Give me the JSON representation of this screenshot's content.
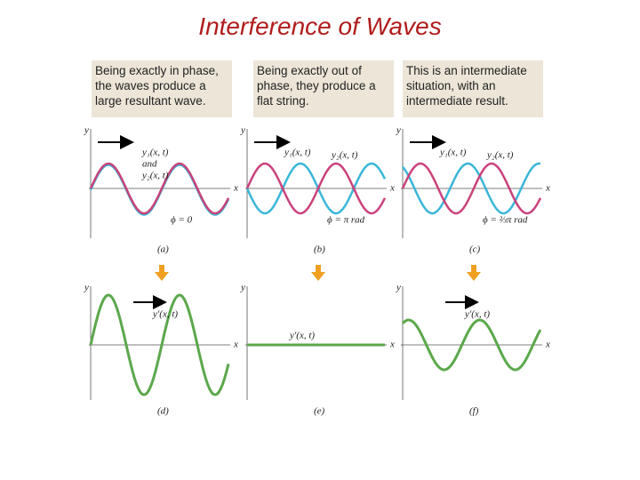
{
  "title": "Interference of Waves",
  "captions": [
    "Being exactly in phase, the waves produce a large resultant wave.",
    "Being exactly out of phase, they produce a flat string.",
    "This is an intermediate situation, with an intermediate result."
  ],
  "top_panels": [
    {
      "label": "(a)",
      "y_axis": "y",
      "x_axis": "x",
      "curve_labels": [
        "y₁(x, t)",
        "and",
        "y₂(x, t)"
      ],
      "phase": "ϕ = 0"
    },
    {
      "label": "(b)",
      "y_axis": "y",
      "x_axis": "x",
      "curve_labels": [
        "y₁(x, t)",
        "y₂(x, t)"
      ],
      "phase": "ϕ = π rad"
    },
    {
      "label": "(c)",
      "y_axis": "y",
      "x_axis": "x",
      "curve_labels": [
        "y₁(x, t)",
        "y₂(x, t)"
      ],
      "phase": "ϕ = ⅔π rad"
    }
  ],
  "bottom_panels": [
    {
      "label": "(d)",
      "y_axis": "y",
      "x_axis": "x",
      "curve_label": "y′(x, t)"
    },
    {
      "label": "(e)",
      "y_axis": "y",
      "x_axis": "x",
      "curve_label": "y′(x, t)"
    },
    {
      "label": "(f)",
      "y_axis": "y",
      "x_axis": "x",
      "curve_label": "y′(x, t)"
    }
  ]
}
